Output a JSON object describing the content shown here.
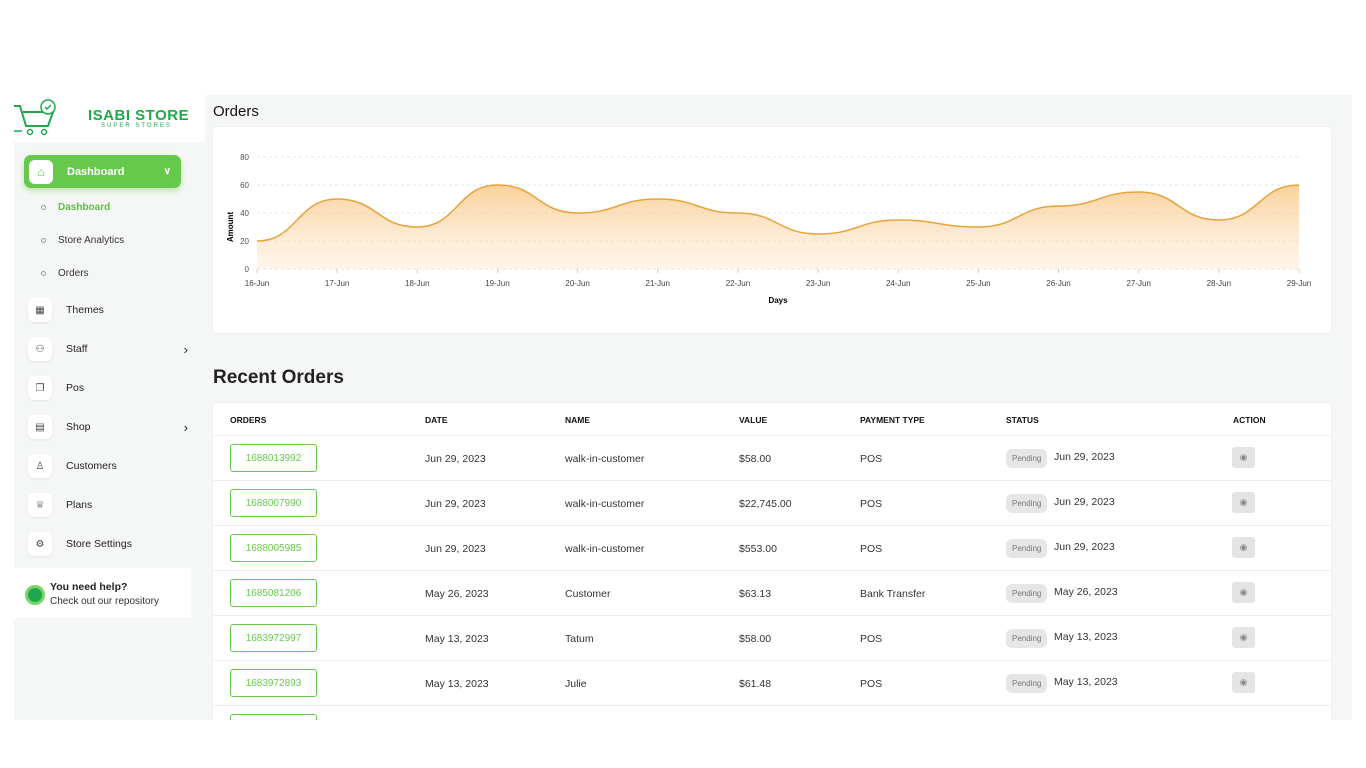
{
  "brand": {
    "name": "ISABI STORE",
    "tagline": "SUPER STORES"
  },
  "sidebar": {
    "active": "Dashboard",
    "sub": [
      "Dashboard",
      "Store Analytics",
      "Orders"
    ],
    "items": [
      {
        "label": "Themes",
        "icon": "grid-icon"
      },
      {
        "label": "Staff",
        "icon": "users-icon",
        "chev": true
      },
      {
        "label": "Pos",
        "icon": "copy-icon"
      },
      {
        "label": "Shop",
        "icon": "receipt-icon",
        "chev": true
      },
      {
        "label": "Customers",
        "icon": "user-icon"
      },
      {
        "label": "Plans",
        "icon": "trophy-icon"
      },
      {
        "label": "Store Settings",
        "icon": "gear-icon"
      }
    ],
    "help": {
      "title": "You need help?",
      "text": "Check out our repository"
    }
  },
  "orders_title": "Orders",
  "chart_data": {
    "type": "area",
    "title": "Orders",
    "xlabel": "Days",
    "ylabel": "Amount",
    "ylim": [
      0,
      80
    ],
    "yticks": [
      0,
      20,
      40,
      60,
      80
    ],
    "categories": [
      "16-Jun",
      "17-Jun",
      "18-Jun",
      "19-Jun",
      "20-Jun",
      "21-Jun",
      "22-Jun",
      "23-Jun",
      "24-Jun",
      "25-Jun",
      "26-Jun",
      "27-Jun",
      "28-Jun",
      "29-Jun"
    ],
    "values": [
      20,
      50,
      30,
      60,
      40,
      50,
      40,
      25,
      35,
      30,
      45,
      55,
      35,
      60
    ],
    "color": "#e8a33d"
  },
  "recent": {
    "title": "Recent Orders",
    "headers": [
      "ORDERS",
      "DATE",
      "NAME",
      "VALUE",
      "PAYMENT TYPE",
      "STATUS",
      "ACTION"
    ],
    "rows": [
      {
        "id": "1688013992",
        "date": "Jun 29, 2023",
        "name": "walk-in-customer",
        "value": "$58.00",
        "pay": "POS",
        "status": "Pending",
        "sdate": "Jun 29, 2023"
      },
      {
        "id": "1688007990",
        "date": "Jun 29, 2023",
        "name": "walk-in-customer",
        "value": "$22,745.00",
        "pay": "POS",
        "status": "Pending",
        "sdate": "Jun 29, 2023"
      },
      {
        "id": "1688005985",
        "date": "Jun 29, 2023",
        "name": "walk-in-customer",
        "value": "$553.00",
        "pay": "POS",
        "status": "Pending",
        "sdate": "Jun 29, 2023"
      },
      {
        "id": "1685081206",
        "date": "May 26, 2023",
        "name": "Customer",
        "value": "$63.13",
        "pay": "Bank Transfer",
        "status": "Pending",
        "sdate": "May 26, 2023"
      },
      {
        "id": "1683972997",
        "date": "May 13, 2023",
        "name": "Tatum",
        "value": "$58.00",
        "pay": "POS",
        "status": "Pending",
        "sdate": "May 13, 2023"
      },
      {
        "id": "1683972893",
        "date": "May 13, 2023",
        "name": "Julie",
        "value": "$61.48",
        "pay": "POS",
        "status": "Pending",
        "sdate": "May 13, 2023"
      }
    ]
  }
}
